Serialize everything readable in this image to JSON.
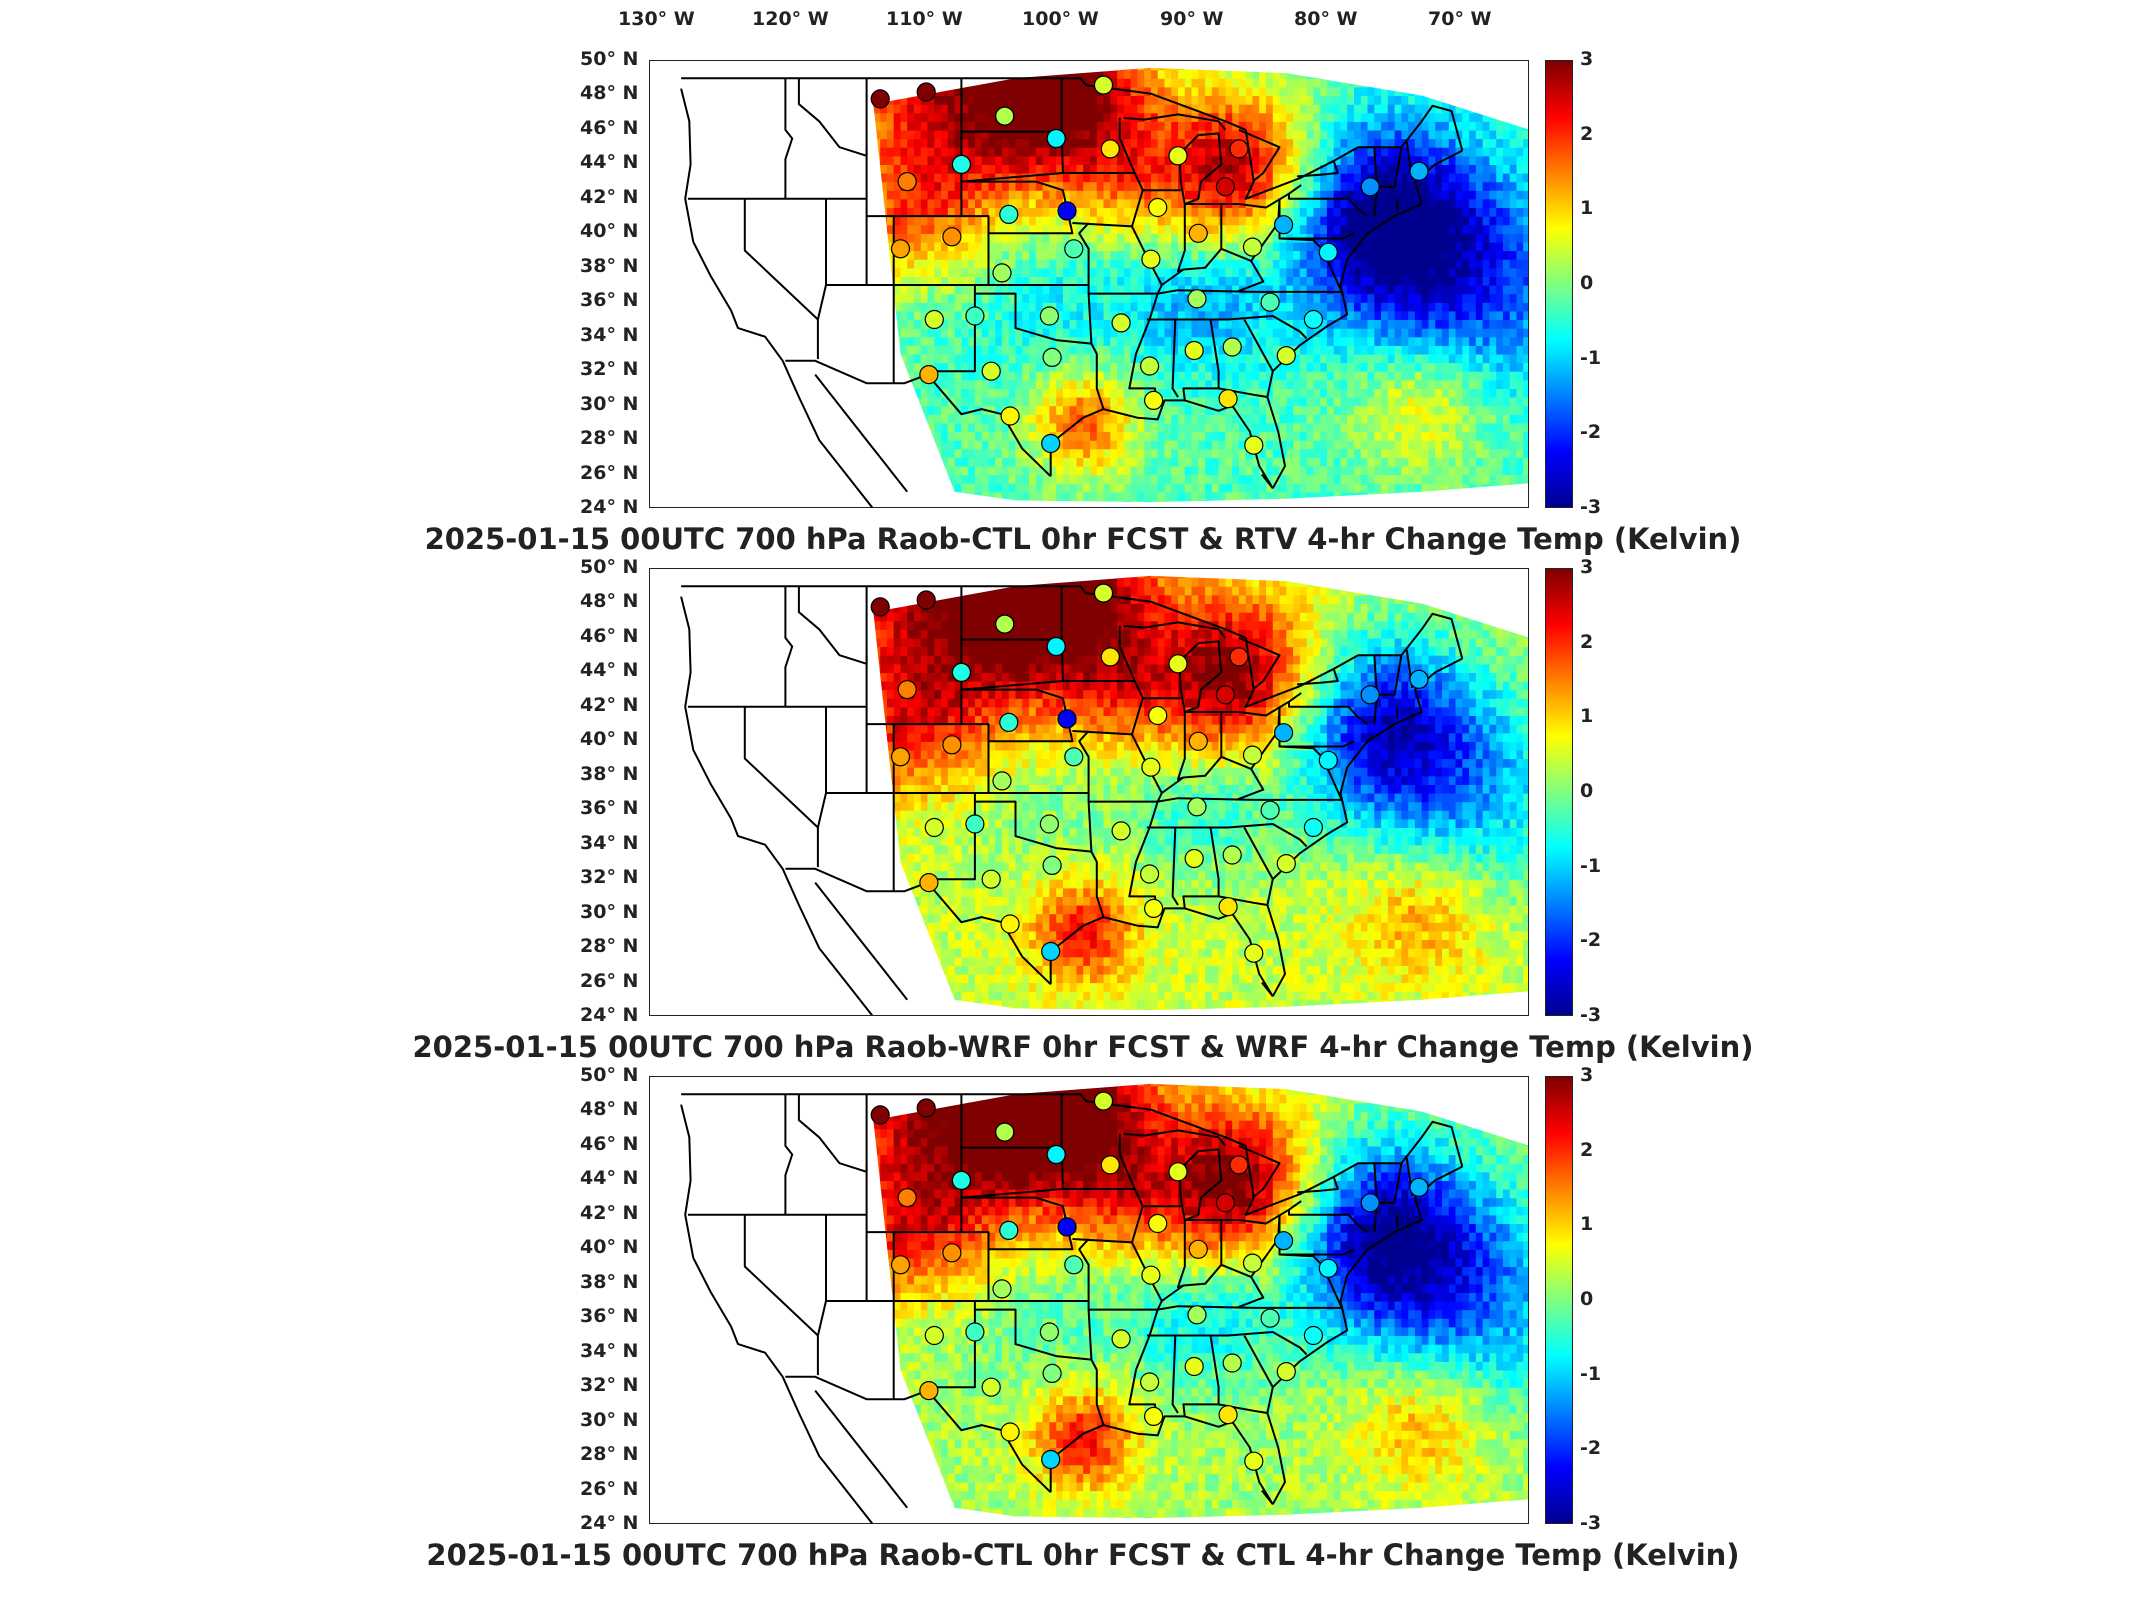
{
  "longitude_labels": [
    "130° W",
    "120° W",
    "110° W",
    "100° W",
    "90° W",
    "80° W",
    "70° W"
  ],
  "latitude_labels": [
    "50° N",
    "48° N",
    "46° N",
    "44° N",
    "42° N",
    "40° N",
    "38° N",
    "36° N",
    "34° N",
    "32° N",
    "30° N",
    "28° N",
    "26° N",
    "24° N"
  ],
  "colorbar": {
    "ticks": [
      "3",
      "2",
      "1",
      "0",
      "-1",
      "-2",
      "-3"
    ],
    "min": -3,
    "max": 3,
    "colormap": "jet",
    "colors": [
      "#7f0000",
      "#ff0000",
      "#ff8000",
      "#ffff00",
      "#80ff80",
      "#00ffff",
      "#0080ff",
      "#0000ff",
      "#00008f"
    ]
  },
  "map": {
    "extent": {
      "lon_min": -127.0,
      "lon_max": -62.0,
      "lat_min": 24.0,
      "lat_max": 50.0
    },
    "domain_outline": [
      [
        -110.5,
        47.5
      ],
      [
        -100,
        49.0
      ],
      [
        -90,
        49.6
      ],
      [
        -80,
        49.3
      ],
      [
        -70,
        48.0
      ],
      [
        -62,
        46.0
      ],
      [
        -62,
        25.5
      ],
      [
        -70,
        25.0
      ],
      [
        -80,
        24.6
      ],
      [
        -90,
        24.4
      ],
      [
        -100,
        24.5
      ],
      [
        -104.5,
        25.0
      ],
      [
        -108.5,
        33.0
      ],
      [
        -110.5,
        47.5
      ]
    ],
    "anomalies": [
      {
        "lon": -103,
        "lat": 48.0,
        "value": 3.0,
        "r": 10
      },
      {
        "lon": -96,
        "lat": 48.5,
        "value": 2.2,
        "r": 6
      },
      {
        "lon": -83.5,
        "lat": 43.8,
        "value": 3.0,
        "r": 6
      },
      {
        "lon": -73,
        "lat": 40.8,
        "value": -3.0,
        "r": 7
      },
      {
        "lon": -66,
        "lat": 37.0,
        "value": -1.5,
        "r": 8
      },
      {
        "lon": -108,
        "lat": 41.0,
        "value": 1.2,
        "r": 5
      },
      {
        "lon": -92,
        "lat": 43.0,
        "value": 1.0,
        "r": 5
      },
      {
        "lon": -95,
        "lat": 29.0,
        "value": 2.0,
        "r": 4
      },
      {
        "lon": -86,
        "lat": 36.0,
        "value": -1.0,
        "r": 5
      },
      {
        "lon": -97,
        "lat": 37.0,
        "value": -0.6,
        "r": 7
      },
      {
        "lon": -70,
        "lat": 30.0,
        "value": 1.2,
        "r": 5
      }
    ]
  },
  "panels": [
    {
      "title": "2025-01-15 00UTC 700 hPa Raob-CTL 0hr FCST & RTV 4-hr Change Temp (Kelvin)",
      "field_offset": -0.3,
      "anomaly_scale": 1.0,
      "stations": [
        {
          "lon": -110.0,
          "lat": 47.8,
          "value": 3.0
        },
        {
          "lon": -106.6,
          "lat": 48.2,
          "value": 3.0
        },
        {
          "lon": -100.8,
          "lat": 46.8,
          "value": 0.3
        },
        {
          "lon": -97.0,
          "lat": 45.5,
          "value": -0.8
        },
        {
          "lon": -93.5,
          "lat": 48.6,
          "value": 0.5
        },
        {
          "lon": -104.0,
          "lat": 44.0,
          "value": -0.6
        },
        {
          "lon": -108.0,
          "lat": 43.0,
          "value": 1.5
        },
        {
          "lon": -100.5,
          "lat": 41.1,
          "value": -0.5
        },
        {
          "lon": -96.2,
          "lat": 41.3,
          "value": -2.3
        },
        {
          "lon": -93.0,
          "lat": 44.9,
          "value": 0.9
        },
        {
          "lon": -89.5,
          "lat": 41.5,
          "value": 0.7
        },
        {
          "lon": -88.0,
          "lat": 44.5,
          "value": 0.6
        },
        {
          "lon": -84.5,
          "lat": 42.7,
          "value": 2.5
        },
        {
          "lon": -83.5,
          "lat": 44.9,
          "value": 2.0
        },
        {
          "lon": -80.2,
          "lat": 40.5,
          "value": -1.2
        },
        {
          "lon": -82.5,
          "lat": 39.2,
          "value": 0.4
        },
        {
          "lon": -86.5,
          "lat": 40.0,
          "value": 1.2
        },
        {
          "lon": -90.0,
          "lat": 38.5,
          "value": 0.6
        },
        {
          "lon": -95.7,
          "lat": 39.1,
          "value": -0.3
        },
        {
          "lon": -101.0,
          "lat": 37.7,
          "value": 0.2
        },
        {
          "lon": -104.7,
          "lat": 39.8,
          "value": 1.4
        },
        {
          "lon": -108.5,
          "lat": 39.1,
          "value": 1.3
        },
        {
          "lon": -106.0,
          "lat": 35.0,
          "value": 0.5
        },
        {
          "lon": -103.0,
          "lat": 35.2,
          "value": -0.4
        },
        {
          "lon": -97.5,
          "lat": 35.2,
          "value": 0.1
        },
        {
          "lon": -92.2,
          "lat": 34.8,
          "value": 0.5
        },
        {
          "lon": -86.6,
          "lat": 36.2,
          "value": 0.2
        },
        {
          "lon": -81.2,
          "lat": 36.0,
          "value": -0.3
        },
        {
          "lon": -78.0,
          "lat": 35.0,
          "value": -0.7
        },
        {
          "lon": -80.0,
          "lat": 32.9,
          "value": 0.5
        },
        {
          "lon": -84.0,
          "lat": 33.4,
          "value": 0.3
        },
        {
          "lon": -86.8,
          "lat": 33.2,
          "value": 0.6
        },
        {
          "lon": -90.1,
          "lat": 32.3,
          "value": 0.4
        },
        {
          "lon": -97.3,
          "lat": 32.8,
          "value": 0.0
        },
        {
          "lon": -101.8,
          "lat": 32.0,
          "value": 0.5
        },
        {
          "lon": -106.4,
          "lat": 31.8,
          "value": 1.2
        },
        {
          "lon": -100.4,
          "lat": 29.4,
          "value": 0.8
        },
        {
          "lon": -97.4,
          "lat": 27.8,
          "value": -1.0
        },
        {
          "lon": -89.8,
          "lat": 30.3,
          "value": 0.7
        },
        {
          "lon": -84.3,
          "lat": 30.4,
          "value": 0.9
        },
        {
          "lon": -82.4,
          "lat": 27.7,
          "value": 0.6
        },
        {
          "lon": -76.9,
          "lat": 38.9,
          "value": -0.8
        },
        {
          "lon": -73.8,
          "lat": 42.7,
          "value": -1.4
        },
        {
          "lon": -70.2,
          "lat": 43.6,
          "value": -1.2
        }
      ]
    },
    {
      "title": "2025-01-15 00UTC 700 hPa Raob-WRF 0hr FCST & WRF 4-hr Change Temp (Kelvin)",
      "field_offset": 0.4,
      "anomaly_scale": 0.9,
      "stations": [
        {
          "lon": -110.0,
          "lat": 47.8,
          "value": 3.0
        },
        {
          "lon": -106.6,
          "lat": 48.2,
          "value": 3.0
        },
        {
          "lon": -100.8,
          "lat": 46.8,
          "value": 0.3
        },
        {
          "lon": -97.0,
          "lat": 45.5,
          "value": -0.8
        },
        {
          "lon": -93.5,
          "lat": 48.6,
          "value": 0.5
        },
        {
          "lon": -104.0,
          "lat": 44.0,
          "value": -0.6
        },
        {
          "lon": -108.0,
          "lat": 43.0,
          "value": 1.5
        },
        {
          "lon": -100.5,
          "lat": 41.1,
          "value": -0.5
        },
        {
          "lon": -96.2,
          "lat": 41.3,
          "value": -2.3
        },
        {
          "lon": -93.0,
          "lat": 44.9,
          "value": 0.9
        },
        {
          "lon": -89.5,
          "lat": 41.5,
          "value": 0.7
        },
        {
          "lon": -88.0,
          "lat": 44.5,
          "value": 0.6
        },
        {
          "lon": -84.5,
          "lat": 42.7,
          "value": 2.5
        },
        {
          "lon": -83.5,
          "lat": 44.9,
          "value": 2.0
        },
        {
          "lon": -80.2,
          "lat": 40.5,
          "value": -1.2
        },
        {
          "lon": -82.5,
          "lat": 39.2,
          "value": 0.4
        },
        {
          "lon": -86.5,
          "lat": 40.0,
          "value": 1.2
        },
        {
          "lon": -90.0,
          "lat": 38.5,
          "value": 0.6
        },
        {
          "lon": -95.7,
          "lat": 39.1,
          "value": -0.3
        },
        {
          "lon": -101.0,
          "lat": 37.7,
          "value": 0.2
        },
        {
          "lon": -104.7,
          "lat": 39.8,
          "value": 1.4
        },
        {
          "lon": -108.5,
          "lat": 39.1,
          "value": 1.3
        },
        {
          "lon": -106.0,
          "lat": 35.0,
          "value": 0.5
        },
        {
          "lon": -103.0,
          "lat": 35.2,
          "value": -0.4
        },
        {
          "lon": -97.5,
          "lat": 35.2,
          "value": 0.1
        },
        {
          "lon": -92.2,
          "lat": 34.8,
          "value": 0.5
        },
        {
          "lon": -86.6,
          "lat": 36.2,
          "value": 0.2
        },
        {
          "lon": -81.2,
          "lat": 36.0,
          "value": -0.3
        },
        {
          "lon": -78.0,
          "lat": 35.0,
          "value": -0.7
        },
        {
          "lon": -80.0,
          "lat": 32.9,
          "value": 0.5
        },
        {
          "lon": -84.0,
          "lat": 33.4,
          "value": 0.3
        },
        {
          "lon": -86.8,
          "lat": 33.2,
          "value": 0.6
        },
        {
          "lon": -90.1,
          "lat": 32.3,
          "value": 0.4
        },
        {
          "lon": -97.3,
          "lat": 32.8,
          "value": 0.0
        },
        {
          "lon": -101.8,
          "lat": 32.0,
          "value": 0.5
        },
        {
          "lon": -106.4,
          "lat": 31.8,
          "value": 1.2
        },
        {
          "lon": -100.4,
          "lat": 29.4,
          "value": 0.8
        },
        {
          "lon": -97.4,
          "lat": 27.8,
          "value": -1.0
        },
        {
          "lon": -89.8,
          "lat": 30.3,
          "value": 0.7
        },
        {
          "lon": -84.3,
          "lat": 30.4,
          "value": 0.9
        },
        {
          "lon": -82.4,
          "lat": 27.7,
          "value": 0.6
        },
        {
          "lon": -76.9,
          "lat": 38.9,
          "value": -0.8
        },
        {
          "lon": -73.8,
          "lat": 42.7,
          "value": -1.4
        },
        {
          "lon": -70.2,
          "lat": 43.6,
          "value": -1.2
        }
      ]
    },
    {
      "title": "2025-01-15 00UTC 700 hPa Raob-CTL 0hr FCST & CTL 4-hr Change Temp (Kelvin)",
      "field_offset": 0.2,
      "anomaly_scale": 1.0,
      "stations": [
        {
          "lon": -110.0,
          "lat": 47.8,
          "value": 3.0
        },
        {
          "lon": -106.6,
          "lat": 48.2,
          "value": 3.0
        },
        {
          "lon": -100.8,
          "lat": 46.8,
          "value": 0.3
        },
        {
          "lon": -97.0,
          "lat": 45.5,
          "value": -0.8
        },
        {
          "lon": -93.5,
          "lat": 48.6,
          "value": 0.5
        },
        {
          "lon": -104.0,
          "lat": 44.0,
          "value": -0.6
        },
        {
          "lon": -108.0,
          "lat": 43.0,
          "value": 1.5
        },
        {
          "lon": -100.5,
          "lat": 41.1,
          "value": -0.5
        },
        {
          "lon": -96.2,
          "lat": 41.3,
          "value": -2.3
        },
        {
          "lon": -93.0,
          "lat": 44.9,
          "value": 0.9
        },
        {
          "lon": -89.5,
          "lat": 41.5,
          "value": 0.7
        },
        {
          "lon": -88.0,
          "lat": 44.5,
          "value": 0.6
        },
        {
          "lon": -84.5,
          "lat": 42.7,
          "value": 2.5
        },
        {
          "lon": -83.5,
          "lat": 44.9,
          "value": 2.0
        },
        {
          "lon": -80.2,
          "lat": 40.5,
          "value": -1.2
        },
        {
          "lon": -82.5,
          "lat": 39.2,
          "value": 0.4
        },
        {
          "lon": -86.5,
          "lat": 40.0,
          "value": 1.2
        },
        {
          "lon": -90.0,
          "lat": 38.5,
          "value": 0.6
        },
        {
          "lon": -95.7,
          "lat": 39.1,
          "value": -0.3
        },
        {
          "lon": -101.0,
          "lat": 37.7,
          "value": 0.2
        },
        {
          "lon": -104.7,
          "lat": 39.8,
          "value": 1.4
        },
        {
          "lon": -108.5,
          "lat": 39.1,
          "value": 1.3
        },
        {
          "lon": -106.0,
          "lat": 35.0,
          "value": 0.5
        },
        {
          "lon": -103.0,
          "lat": 35.2,
          "value": -0.4
        },
        {
          "lon": -97.5,
          "lat": 35.2,
          "value": 0.1
        },
        {
          "lon": -92.2,
          "lat": 34.8,
          "value": 0.5
        },
        {
          "lon": -86.6,
          "lat": 36.2,
          "value": 0.2
        },
        {
          "lon": -81.2,
          "lat": 36.0,
          "value": -0.3
        },
        {
          "lon": -78.0,
          "lat": 35.0,
          "value": -0.7
        },
        {
          "lon": -80.0,
          "lat": 32.9,
          "value": 0.5
        },
        {
          "lon": -84.0,
          "lat": 33.4,
          "value": 0.3
        },
        {
          "lon": -86.8,
          "lat": 33.2,
          "value": 0.6
        },
        {
          "lon": -90.1,
          "lat": 32.3,
          "value": 0.4
        },
        {
          "lon": -97.3,
          "lat": 32.8,
          "value": 0.0
        },
        {
          "lon": -101.8,
          "lat": 32.0,
          "value": 0.5
        },
        {
          "lon": -106.4,
          "lat": 31.8,
          "value": 1.2
        },
        {
          "lon": -100.4,
          "lat": 29.4,
          "value": 0.8
        },
        {
          "lon": -97.4,
          "lat": 27.8,
          "value": -1.0
        },
        {
          "lon": -89.8,
          "lat": 30.3,
          "value": 0.7
        },
        {
          "lon": -84.3,
          "lat": 30.4,
          "value": 0.9
        },
        {
          "lon": -82.4,
          "lat": 27.7,
          "value": 0.6
        },
        {
          "lon": -76.9,
          "lat": 38.9,
          "value": -0.8
        },
        {
          "lon": -73.8,
          "lat": 42.7,
          "value": -1.4
        },
        {
          "lon": -70.2,
          "lat": 43.6,
          "value": -1.2
        }
      ]
    }
  ]
}
